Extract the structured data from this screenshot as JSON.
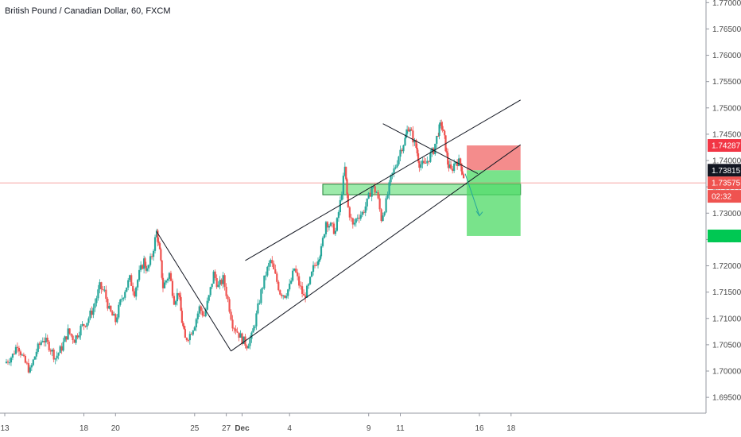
{
  "header": {
    "title": "British Pound / Canadian Dollar, 60, FXCM"
  },
  "colors": {
    "up": "#26a69a",
    "down": "#ef5350",
    "text": "#131722",
    "axis_text": "#4a4a4a",
    "grid": "#eeeeee",
    "zone": "#4cd964",
    "stop": "#f06565"
  },
  "chart_data": {
    "type": "candlestick",
    "title": "British Pound / Canadian Dollar, 60, FXCM",
    "symbol": "GBPCAD",
    "interval": "60",
    "source": "FXCM",
    "ylim": [
      1.692,
      1.7705
    ],
    "xlim": [
      13,
      50
    ],
    "grid": false,
    "y_ticks": [
      "1.69500",
      "1.70000",
      "1.70500",
      "1.71000",
      "1.71500",
      "1.72000",
      "1.72500",
      "1.73000",
      "1.73500",
      "1.74000",
      "1.74500",
      "1.75000",
      "1.75500",
      "1.76000",
      "1.76500",
      "1.77000"
    ],
    "x_ticks": [
      {
        "label": "13",
        "t": 13
      },
      {
        "label": "18",
        "t": 18
      },
      {
        "label": "20",
        "t": 20
      },
      {
        "label": "25",
        "t": 25
      },
      {
        "label": "27",
        "t": 27
      },
      {
        "label": "Dec",
        "t": 28
      },
      {
        "label": "4",
        "t": 31
      },
      {
        "label": "9",
        "t": 36
      },
      {
        "label": "11",
        "t": 38
      },
      {
        "label": "16",
        "t": 43
      },
      {
        "label": "18",
        "t": 45
      }
    ],
    "price_labels": [
      {
        "text": "1.74287",
        "value": 1.74287,
        "color": "#f23645",
        "text_color": "#ffffff"
      },
      {
        "text": "1.73815",
        "value": 1.73815,
        "color": "#131722",
        "text_color": "#ffffff"
      },
      {
        "text": "1.73575",
        "value": 1.73575,
        "color": "#ef5350",
        "text_color": "#ffffff"
      },
      {
        "text": "02:32",
        "value": 1.7332,
        "color": "#ef5350",
        "text_color": "#ffffff"
      },
      {
        "text": "1.72567",
        "value": 1.72567,
        "color": "#00c853",
        "text_color": "#00c853"
      }
    ],
    "price_line": 1.73575,
    "price_path": [
      [
        13.0,
        1.7015
      ],
      [
        13.5,
        1.703
      ],
      [
        13.8,
        1.7052
      ],
      [
        14.2,
        1.702
      ],
      [
        14.6,
        1.7
      ],
      [
        15.0,
        1.7038
      ],
      [
        15.4,
        1.7062
      ],
      [
        15.8,
        1.7048
      ],
      [
        16.2,
        1.7025
      ],
      [
        16.6,
        1.7045
      ],
      [
        17.0,
        1.7075
      ],
      [
        17.4,
        1.706
      ],
      [
        17.8,
        1.7082
      ],
      [
        18.2,
        1.7095
      ],
      [
        18.6,
        1.712
      ],
      [
        19.0,
        1.716
      ],
      [
        19.3,
        1.715
      ],
      [
        19.6,
        1.7115
      ],
      [
        20.0,
        1.7095
      ],
      [
        20.3,
        1.713
      ],
      [
        20.6,
        1.7155
      ],
      [
        20.9,
        1.7175
      ],
      [
        21.2,
        1.715
      ],
      [
        21.5,
        1.7185
      ],
      [
        21.8,
        1.721
      ],
      [
        22.0,
        1.719
      ],
      [
        22.3,
        1.722
      ],
      [
        22.6,
        1.7265
      ],
      [
        22.8,
        1.7225
      ],
      [
        23.0,
        1.716
      ],
      [
        23.4,
        1.7185
      ],
      [
        23.7,
        1.7135
      ],
      [
        24.0,
        1.715
      ],
      [
        24.2,
        1.7095
      ],
      [
        24.4,
        1.706
      ],
      [
        24.7,
        1.707
      ],
      [
        25.0,
        1.709
      ],
      [
        25.3,
        1.712
      ],
      [
        25.6,
        1.7105
      ],
      [
        25.9,
        1.714
      ],
      [
        26.2,
        1.7185
      ],
      [
        26.5,
        1.716
      ],
      [
        26.8,
        1.7175
      ],
      [
        27.1,
        1.7135
      ],
      [
        27.4,
        1.709
      ],
      [
        27.7,
        1.7075
      ],
      [
        28.0,
        1.706
      ],
      [
        28.3,
        1.705
      ],
      [
        28.6,
        1.7065
      ],
      [
        28.9,
        1.7105
      ],
      [
        29.2,
        1.715
      ],
      [
        29.5,
        1.7185
      ],
      [
        29.8,
        1.721
      ],
      [
        30.1,
        1.718
      ],
      [
        30.4,
        1.715
      ],
      [
        30.7,
        1.7145
      ],
      [
        31.0,
        1.716
      ],
      [
        31.3,
        1.7195
      ],
      [
        31.6,
        1.7165
      ],
      [
        31.9,
        1.714
      ],
      [
        32.2,
        1.716
      ],
      [
        32.5,
        1.7195
      ],
      [
        32.8,
        1.7215
      ],
      [
        33.0,
        1.723
      ],
      [
        33.3,
        1.7285
      ],
      [
        33.6,
        1.7275
      ],
      [
        33.9,
        1.7265
      ],
      [
        34.2,
        1.732
      ],
      [
        34.5,
        1.7385
      ],
      [
        34.7,
        1.731
      ],
      [
        35.0,
        1.7275
      ],
      [
        35.3,
        1.7295
      ],
      [
        35.6,
        1.73
      ],
      [
        35.9,
        1.732
      ],
      [
        36.2,
        1.735
      ],
      [
        36.5,
        1.734
      ],
      [
        36.8,
        1.729
      ],
      [
        37.1,
        1.732
      ],
      [
        37.4,
        1.7365
      ],
      [
        37.7,
        1.739
      ],
      [
        38.0,
        1.742
      ],
      [
        38.3,
        1.744
      ],
      [
        38.5,
        1.7465
      ],
      [
        38.7,
        1.745
      ],
      [
        39.0,
        1.7425
      ],
      [
        39.2,
        1.7395
      ],
      [
        39.5,
        1.739
      ],
      [
        39.8,
        1.7405
      ],
      [
        40.1,
        1.742
      ],
      [
        40.4,
        1.7455
      ],
      [
        40.6,
        1.747
      ],
      [
        40.8,
        1.744
      ],
      [
        41.0,
        1.7395
      ],
      [
        41.2,
        1.738
      ],
      [
        41.5,
        1.74
      ],
      [
        41.8,
        1.7395
      ],
      [
        42.0,
        1.737
      ]
    ],
    "drawings": [
      {
        "name": "trend-line",
        "points": [
          [
            22.6,
            1.7265
          ],
          [
            27.3,
            1.7038
          ]
        ]
      },
      {
        "name": "channel-lower",
        "points": [
          [
            27.3,
            1.7038
          ],
          [
            45.6,
            1.743
          ]
        ]
      },
      {
        "name": "channel-upper",
        "points": [
          [
            28.2,
            1.721
          ],
          [
            45.6,
            1.7515
          ]
        ]
      },
      {
        "name": "wedge-line",
        "points": [
          [
            36.9,
            1.747
          ],
          [
            42.9,
            1.7375
          ]
        ]
      },
      {
        "name": "projection-arrow",
        "points": [
          [
            42.1,
            1.7375
          ],
          [
            43.0,
            1.7295
          ]
        ]
      }
    ],
    "zones": [
      {
        "name": "support-zone",
        "t0": 33.1,
        "t1": 45.6,
        "y0": 1.7335,
        "y1": 1.7355
      },
      {
        "name": "stop-zone",
        "t0": 42.2,
        "t1": 45.6,
        "y0": 1.73815,
        "y1": 1.74287
      },
      {
        "name": "target-zone",
        "t0": 42.2,
        "t1": 45.6,
        "y0": 1.72567,
        "y1": 1.73815
      }
    ]
  }
}
